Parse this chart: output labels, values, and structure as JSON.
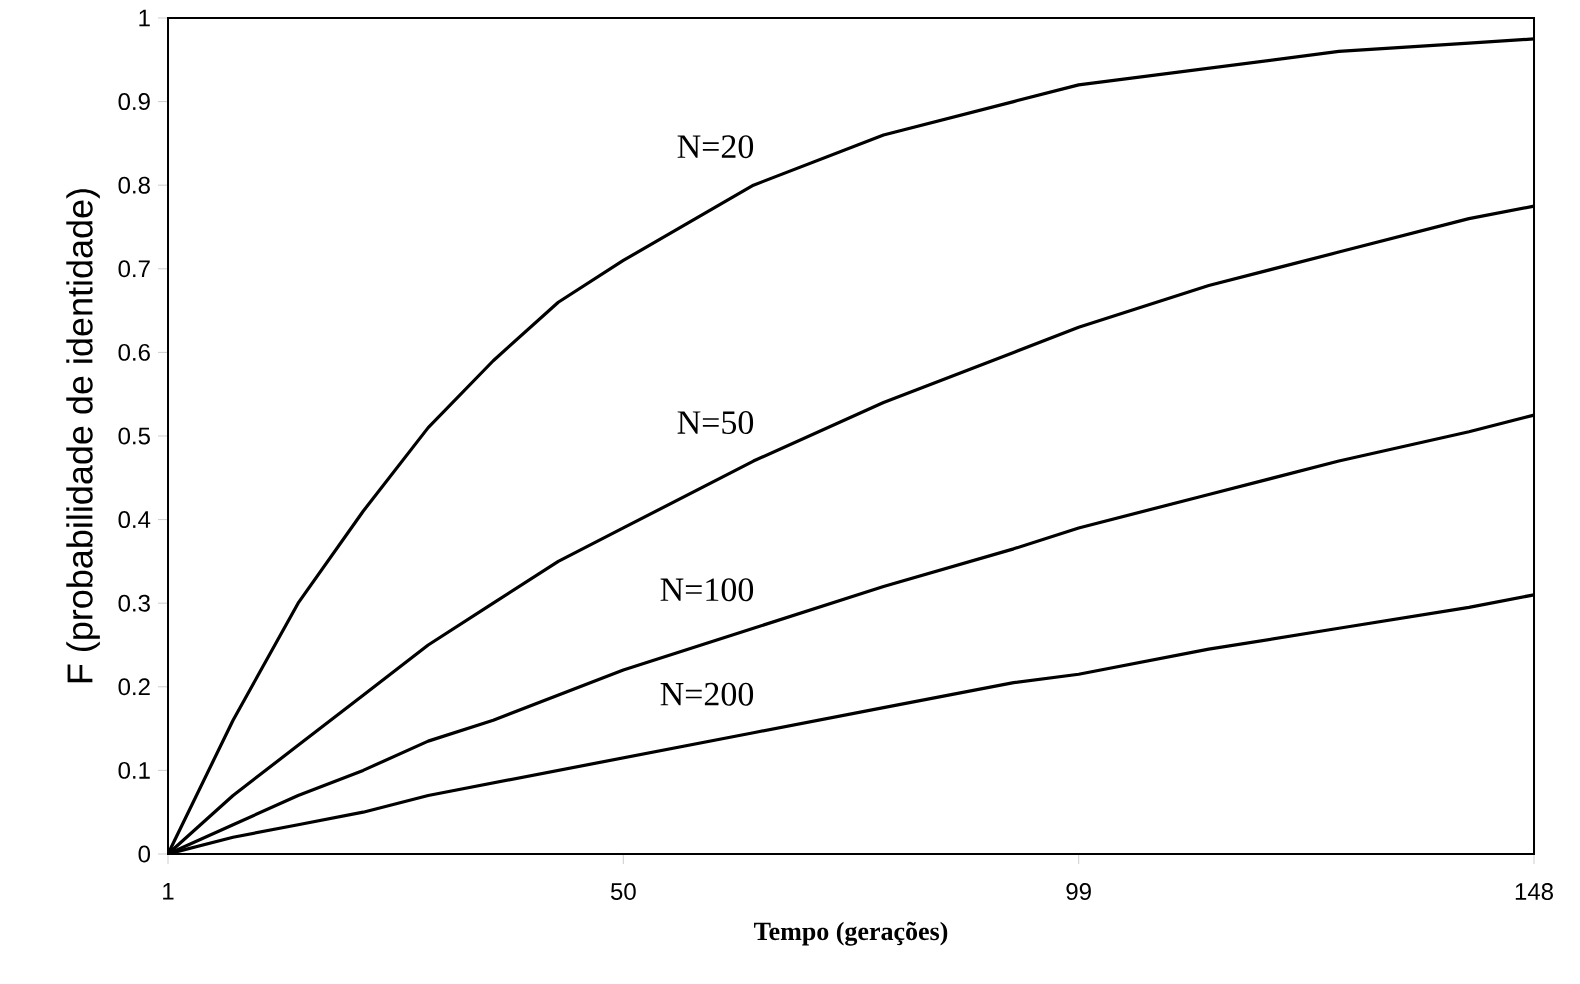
{
  "chart_data": {
    "type": "line",
    "xlabel": "Tempo (gerações)",
    "ylabel": "F (probabilidade de identidade)",
    "x": [
      1,
      8,
      15,
      22,
      29,
      36,
      43,
      50,
      64,
      78,
      92,
      99,
      113,
      127,
      141,
      148
    ],
    "series": [
      {
        "name": "N=20",
        "color": "#000000",
        "values": [
          0,
          0.16,
          0.3,
          0.41,
          0.51,
          0.59,
          0.66,
          0.71,
          0.8,
          0.86,
          0.9,
          0.92,
          0.94,
          0.96,
          0.97,
          0.975
        ]
      },
      {
        "name": "N=50",
        "color": "#000000",
        "values": [
          0,
          0.07,
          0.13,
          0.19,
          0.25,
          0.3,
          0.35,
          0.39,
          0.47,
          0.54,
          0.6,
          0.63,
          0.68,
          0.72,
          0.76,
          0.775
        ]
      },
      {
        "name": "N=100",
        "color": "#000000",
        "values": [
          0,
          0.035,
          0.07,
          0.1,
          0.135,
          0.16,
          0.19,
          0.22,
          0.27,
          0.32,
          0.365,
          0.39,
          0.43,
          0.47,
          0.505,
          0.525
        ]
      },
      {
        "name": "N=200",
        "color": "#000000",
        "values": [
          0,
          0.02,
          0.035,
          0.05,
          0.07,
          0.085,
          0.1,
          0.115,
          0.145,
          0.175,
          0.205,
          0.215,
          0.245,
          0.27,
          0.295,
          0.31
        ]
      }
    ],
    "xlim": [
      1,
      148
    ],
    "xticks": [
      1,
      50,
      99,
      148
    ],
    "ylim": [
      0,
      1
    ],
    "yticks": [
      0,
      0.1,
      0.2,
      0.3,
      0.4,
      0.5,
      0.6,
      0.7,
      0.8,
      0.9,
      1
    ],
    "grid": false,
    "legend": false,
    "marker": "none",
    "line_style": "solid"
  }
}
